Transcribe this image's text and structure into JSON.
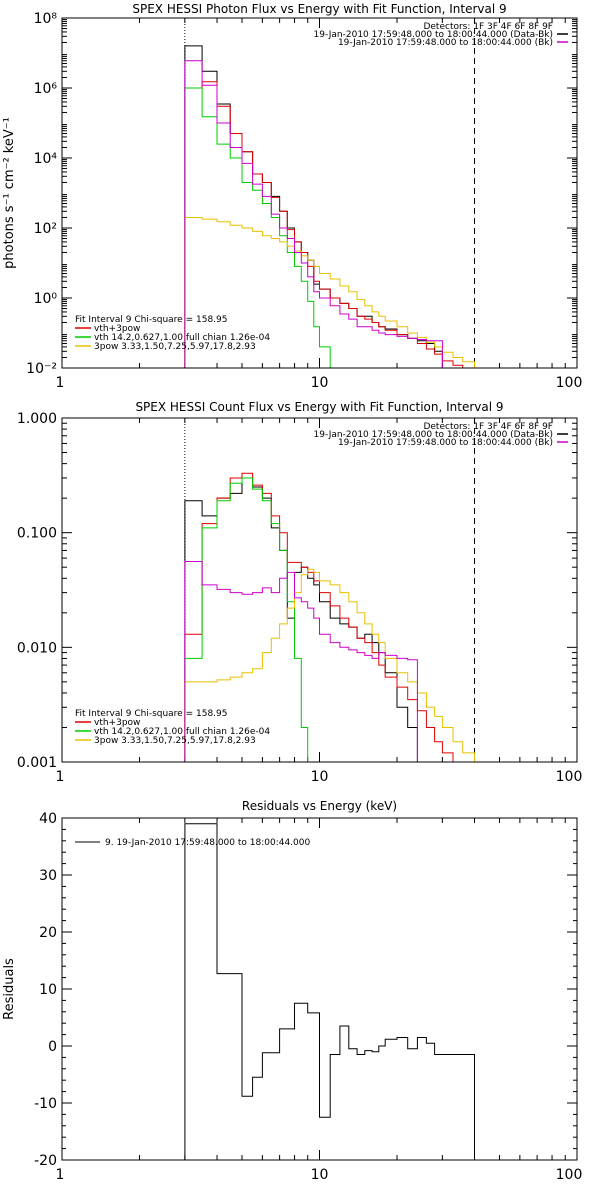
{
  "chart_data": [
    {
      "type": "line",
      "title": "SPEX HESSI Photon Flux vs Energy with Fit Function, Interval 9",
      "ylabel": "photons s⁻¹ cm⁻² keV⁻¹",
      "xlabel": "",
      "x_scale": "log",
      "y_scale": "log",
      "xlim": [
        1,
        100
      ],
      "ylim": [
        0.01,
        100000000
      ],
      "x_ticks": [
        1,
        10,
        100
      ],
      "x_tick_labels": [
        "1",
        "10",
        "100"
      ],
      "y_ticks": [
        0.01,
        1,
        100,
        10000,
        1000000,
        100000000
      ],
      "y_tick_labels": [
        "10⁻²",
        "10⁰",
        "10²",
        "10⁴",
        "10⁶",
        "10⁸"
      ],
      "vlines": [
        {
          "x": 3,
          "style": "dotted"
        },
        {
          "x": 40,
          "style": "dashed"
        }
      ],
      "header_lines": [
        "Detectors: 1F 3F 4F 6F 8F 9F",
        "19-Jan-2010 17:59:48.000 to 18:00:44.000 (Data-Bk)",
        "19-Jan-2010 17:59:48.000 to 18:00:44.000 (Bk)"
      ],
      "header_keys": [
        {
          "color": "#000000"
        },
        {
          "color": "#cc00cc"
        }
      ],
      "legend": {
        "title": "Fit Interval 9    Chi-square = 158.95",
        "entries": [
          {
            "label": "vth+3pow",
            "color": "#e00000"
          },
          {
            "label": "vth 14.2,0.627,1.00  full chian 1.26e-04",
            "color": "#00cc00"
          },
          {
            "label": "3pow 3.33,1.50,7.25,5.97,17.8,2.93",
            "color": "#e8c000"
          }
        ]
      },
      "bin_edges": [
        3,
        3.5,
        4,
        4.5,
        5,
        5.5,
        6,
        6.5,
        7,
        7.5,
        8,
        8.5,
        9,
        9.5,
        10,
        11,
        12,
        13,
        14,
        15,
        16,
        17,
        18,
        20,
        22,
        24,
        26,
        28,
        30,
        33,
        36,
        40,
        45,
        50,
        56,
        63,
        70
      ],
      "series": [
        {
          "color": "#000000",
          "values": [
            16000000,
            3000000,
            350000,
            50000,
            15000,
            3500,
            2000,
            800,
            300,
            100,
            40,
            20,
            12,
            2.5,
            1.8,
            1,
            0.7,
            0.5,
            0.3,
            0.3,
            0.2,
            0.15,
            0.13,
            0.09,
            0.07,
            0.06,
            0.05,
            0.03
          ]
        },
        {
          "color": "#e00000",
          "values": [
            1000000,
            1500000,
            300000,
            50000,
            15000,
            3500,
            2000,
            750,
            300,
            90,
            40,
            20,
            8,
            3,
            1.8,
            1,
            0.7,
            0.5,
            0.3,
            0.25,
            0.2,
            0.15,
            0.12,
            0.09,
            0.07,
            0.05,
            0.035,
            0.025,
            0.016,
            0.012,
            0.01
          ]
        },
        {
          "color": "#00cc00",
          "values": [
            1000000,
            150000,
            25000,
            10000,
            2000,
            1200,
            500,
            200,
            60,
            20,
            8,
            3,
            0.8,
            0.15,
            0.04,
            0.008
          ]
        },
        {
          "color": "#e8c000",
          "values": [
            200,
            180,
            150,
            120,
            100,
            80,
            60,
            50,
            40,
            30,
            22,
            16,
            12,
            8,
            5,
            3.5,
            2.2,
            1.5,
            0.9,
            0.6,
            0.4,
            0.3,
            0.22,
            0.15,
            0.1,
            0.075,
            0.055,
            0.04,
            0.028,
            0.02,
            0.015,
            0.01,
            0.008,
            0.006,
            0.005
          ]
        },
        {
          "color": "#cc00cc",
          "values": [
            6000000,
            1200000,
            100000,
            20000,
            7000,
            1800,
            800,
            250,
            100,
            50,
            20,
            10,
            4,
            1.5,
            1,
            0.6,
            0.35,
            0.25,
            0.15,
            0.15,
            0.12,
            0.1,
            0.09,
            0.08,
            0.07,
            0.065,
            0.06,
            0.06
          ]
        }
      ]
    },
    {
      "type": "line",
      "title": "SPEX HESSI Count Flux vs Energy with Fit Function, Interval 9",
      "ylabel": "",
      "xlabel": "",
      "x_scale": "log",
      "y_scale": "log",
      "xlim": [
        1,
        100
      ],
      "ylim": [
        0.001,
        1
      ],
      "x_ticks": [
        1,
        10,
        100
      ],
      "x_tick_labels": [
        "1",
        "10",
        "100"
      ],
      "y_ticks": [
        0.001,
        0.01,
        0.1,
        1
      ],
      "y_tick_labels": [
        "0.001",
        "0.010",
        "0.100",
        "1.000"
      ],
      "vlines": [
        {
          "x": 3,
          "style": "dotted"
        },
        {
          "x": 40,
          "style": "dashed"
        }
      ],
      "header_lines": [
        "Detectors: 1F 3F 4F 6F 8F 9F",
        "19-Jan-2010 17:59:48.000 to 18:00:44.000 (Data-Bk)",
        "19-Jan-2010 17:59:48.000 to 18:00:44.000 (Bk)"
      ],
      "header_keys": [
        {
          "color": "#000000"
        },
        {
          "color": "#cc00cc"
        }
      ],
      "legend": {
        "title": "Fit Interval 9    Chi-square = 158.95",
        "entries": [
          {
            "label": "vth+3pow",
            "color": "#e00000"
          },
          {
            "label": "vth 14.2,0.627,1.00  full chian 1.26e-04",
            "color": "#00cc00"
          },
          {
            "label": "3pow 3.33,1.50,7.25,5.97,17.8,2.93",
            "color": "#e8c000"
          }
        ]
      },
      "bin_edges": [
        3,
        3.5,
        4,
        4.5,
        5,
        5.5,
        6,
        6.5,
        7,
        7.5,
        8,
        8.5,
        9,
        9.5,
        10,
        11,
        12,
        13,
        14,
        15,
        16,
        17,
        18,
        20,
        22,
        24,
        26,
        28,
        30,
        33,
        36,
        40,
        45,
        50,
        56,
        63,
        70
      ],
      "series": [
        {
          "color": "#000000",
          "values": [
            0.19,
            0.14,
            0.2,
            0.22,
            0.3,
            0.25,
            0.2,
            0.11,
            0.07,
            0.018,
            0.045,
            0.05,
            0.04,
            0.035,
            0.025,
            0.018,
            0.016,
            0.015,
            0.012,
            0.013,
            0.011,
            0.009,
            0.006,
            0.003,
            0.002
          ]
        },
        {
          "color": "#e00000",
          "values": [
            0.013,
            0.12,
            0.2,
            0.3,
            0.33,
            0.26,
            0.22,
            0.14,
            0.1,
            0.055,
            0.055,
            0.05,
            0.045,
            0.038,
            0.03,
            0.023,
            0.018,
            0.015,
            0.012,
            0.011,
            0.009,
            0.007,
            0.0055,
            0.0045,
            0.0035,
            0.0028,
            0.002,
            0.0015,
            0.0012
          ]
        },
        {
          "color": "#00cc00",
          "values": [
            0.008,
            0.11,
            0.19,
            0.27,
            0.3,
            0.24,
            0.19,
            0.12,
            0.07,
            0.025,
            0.008,
            0.002,
            0.0008
          ]
        },
        {
          "color": "#e8c000",
          "values": [
            0.005,
            0.005,
            0.0052,
            0.0055,
            0.006,
            0.0065,
            0.009,
            0.012,
            0.016,
            0.022,
            0.03,
            0.043,
            0.048,
            0.045,
            0.038,
            0.035,
            0.03,
            0.025,
            0.02,
            0.016,
            0.013,
            0.011,
            0.008,
            0.006,
            0.005,
            0.004,
            0.003,
            0.0025,
            0.002,
            0.0015,
            0.0012,
            0.001
          ]
        },
        {
          "color": "#cc00cc",
          "values": [
            0.056,
            0.035,
            0.032,
            0.03,
            0.029,
            0.03,
            0.033,
            0.03,
            0.04,
            0.045,
            0.027,
            0.025,
            0.022,
            0.018,
            0.013,
            0.011,
            0.01,
            0.0095,
            0.009,
            0.0085,
            0.008,
            0.009,
            0.0085,
            0.008,
            0.0078
          ]
        }
      ]
    },
    {
      "type": "line",
      "title": "Residuals vs Energy (keV)",
      "ylabel": "Residuals",
      "xlabel": "",
      "x_scale": "log",
      "y_scale": "linear",
      "xlim": [
        1,
        100
      ],
      "ylim": [
        -20,
        40
      ],
      "x_ticks": [
        1,
        10,
        100
      ],
      "x_tick_labels": [
        "1",
        "10",
        "100"
      ],
      "y_ticks": [
        -20,
        -10,
        0,
        10,
        20,
        30,
        40
      ],
      "y_tick_labels": [
        "-20",
        "-10",
        "0",
        "10",
        "20",
        "30",
        "40"
      ],
      "legend": {
        "entries": [
          {
            "label": "9. 19-Jan-2010 17:59:48.000 to 18:00:44.000",
            "color": "#000000"
          }
        ]
      },
      "bin_edges": [
        3,
        4,
        4.5,
        5,
        5.5,
        6,
        7,
        8,
        9,
        10,
        11,
        12,
        13,
        14,
        15,
        16,
        17,
        18,
        20,
        22,
        24,
        26,
        28,
        30,
        33,
        36,
        40
      ],
      "series": [
        {
          "color": "#000000",
          "values": [
            39,
            12.7,
            12.7,
            -8.8,
            -5.5,
            -1.2,
            3,
            7.5,
            5.8,
            -12.5,
            -1.5,
            3.5,
            -0.5,
            -1.5,
            -0.8,
            -1,
            0,
            1.2,
            1.5,
            -0.5,
            1.5,
            0.5,
            -1.5,
            -1.5,
            -1.5,
            -1.5
          ]
        }
      ]
    }
  ]
}
